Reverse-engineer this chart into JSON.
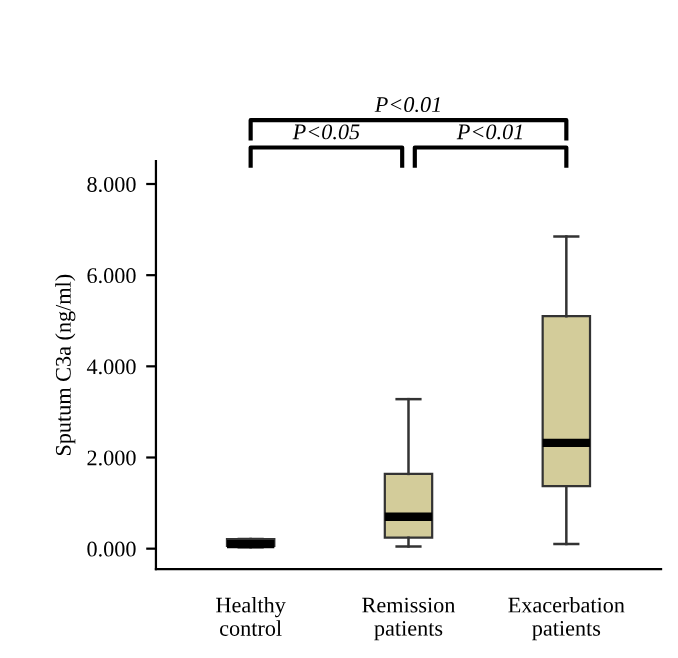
{
  "chart_data": {
    "type": "box",
    "ylabel": "Sputum C3a (ng/ml)",
    "categories": [
      "Healthy\ncontrol",
      "Remission\npatients",
      "Exacerbation\npatients"
    ],
    "boxes": [
      {
        "low": 0.03,
        "q1": 0.06,
        "median": 0.1,
        "q3": 0.21,
        "high": 0.21
      },
      {
        "low": 0.05,
        "q1": 0.24,
        "median": 0.7,
        "q3": 1.64,
        "high": 3.28
      },
      {
        "low": 0.1,
        "q1": 1.37,
        "median": 2.32,
        "q3": 5.1,
        "high": 6.85
      }
    ],
    "color": "#d3cc9a",
    "ylim": [
      -0.45,
      8.5
    ],
    "yticks": [
      {
        "value": 0,
        "label": "0.000"
      },
      {
        "value": 2,
        "label": "2.000"
      },
      {
        "value": 4,
        "label": "4.000"
      },
      {
        "value": 6,
        "label": "6.000"
      },
      {
        "value": 8,
        "label": "8.000"
      }
    ],
    "grid": false,
    "annotations": [
      "P<0.01",
      "P<0.05",
      "P<0.01"
    ]
  }
}
